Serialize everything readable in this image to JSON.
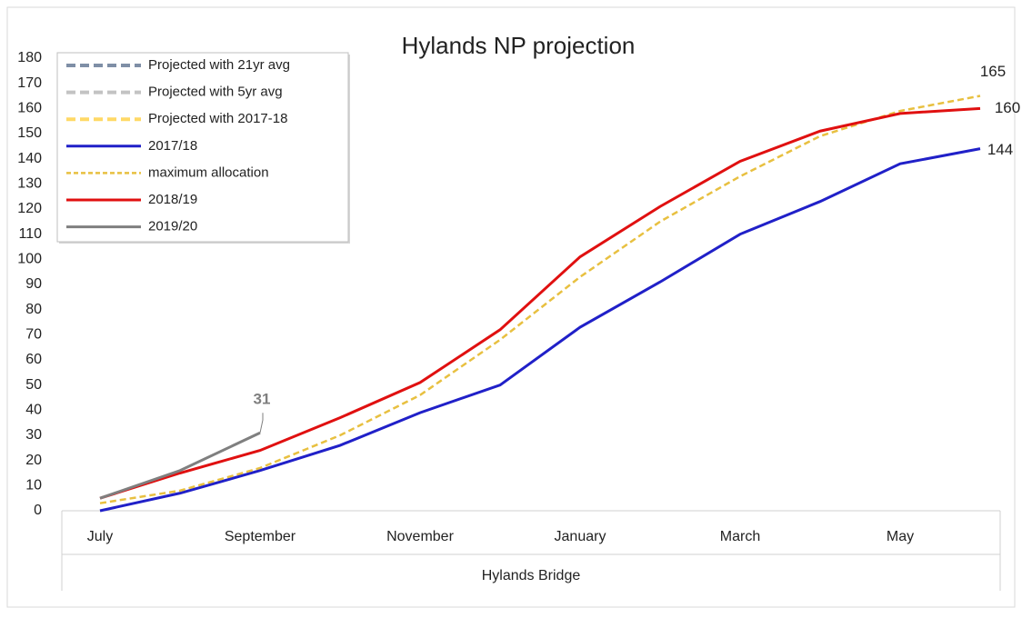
{
  "chart_data": {
    "type": "line",
    "title": "Hylands NP projection",
    "xlabel": "Hylands Bridge",
    "categories": [
      "July",
      null,
      "September",
      null,
      "November",
      null,
      "January",
      null,
      "March",
      null,
      "May",
      null
    ],
    "ylim": [
      0,
      180
    ],
    "yticks": [
      0,
      10,
      20,
      30,
      40,
      50,
      60,
      70,
      80,
      90,
      100,
      110,
      120,
      130,
      140,
      150,
      160,
      170,
      180
    ],
    "grid": false,
    "legend": "upper left",
    "series": [
      {
        "name": "Projected with 21yr avg",
        "color": "#7f8fa6",
        "dash": true,
        "values": [
          null,
          null,
          null,
          null,
          null,
          null,
          null,
          null,
          null,
          null,
          null,
          null
        ]
      },
      {
        "name": "Projected  with 5yr avg",
        "color": "#c3c3c3",
        "dash": true,
        "values": [
          null,
          null,
          null,
          null,
          null,
          null,
          null,
          null,
          null,
          null,
          null,
          null
        ]
      },
      {
        "name": "Projected with 2017-18",
        "color": "#ffd966",
        "dash": true,
        "values": [
          null,
          null,
          null,
          null,
          null,
          null,
          null,
          null,
          null,
          null,
          null,
          null
        ]
      },
      {
        "name": "2017/18",
        "color": "#2020c8",
        "dash": false,
        "label_last": true,
        "values": [
          0,
          7,
          16,
          26,
          39,
          50,
          73,
          91,
          110,
          123,
          138,
          144
        ]
      },
      {
        "name": "maximum allocation",
        "color": "#e8c040",
        "dash": true,
        "label_last": true,
        "values": [
          3,
          8,
          17,
          30,
          46,
          68,
          93,
          115,
          133,
          149,
          159,
          165
        ]
      },
      {
        "name": "2018/19",
        "color": "#e01010",
        "dash": false,
        "label_last": true,
        "values": [
          5,
          15,
          24,
          37,
          51,
          72,
          101,
          121,
          139,
          151,
          158,
          160
        ]
      },
      {
        "name": "2019/20",
        "color": "#7f7f7f",
        "dash": false,
        "label_last": true,
        "values": [
          5,
          16,
          31,
          null,
          null,
          null,
          null,
          null,
          null,
          null,
          null,
          null
        ]
      }
    ]
  }
}
